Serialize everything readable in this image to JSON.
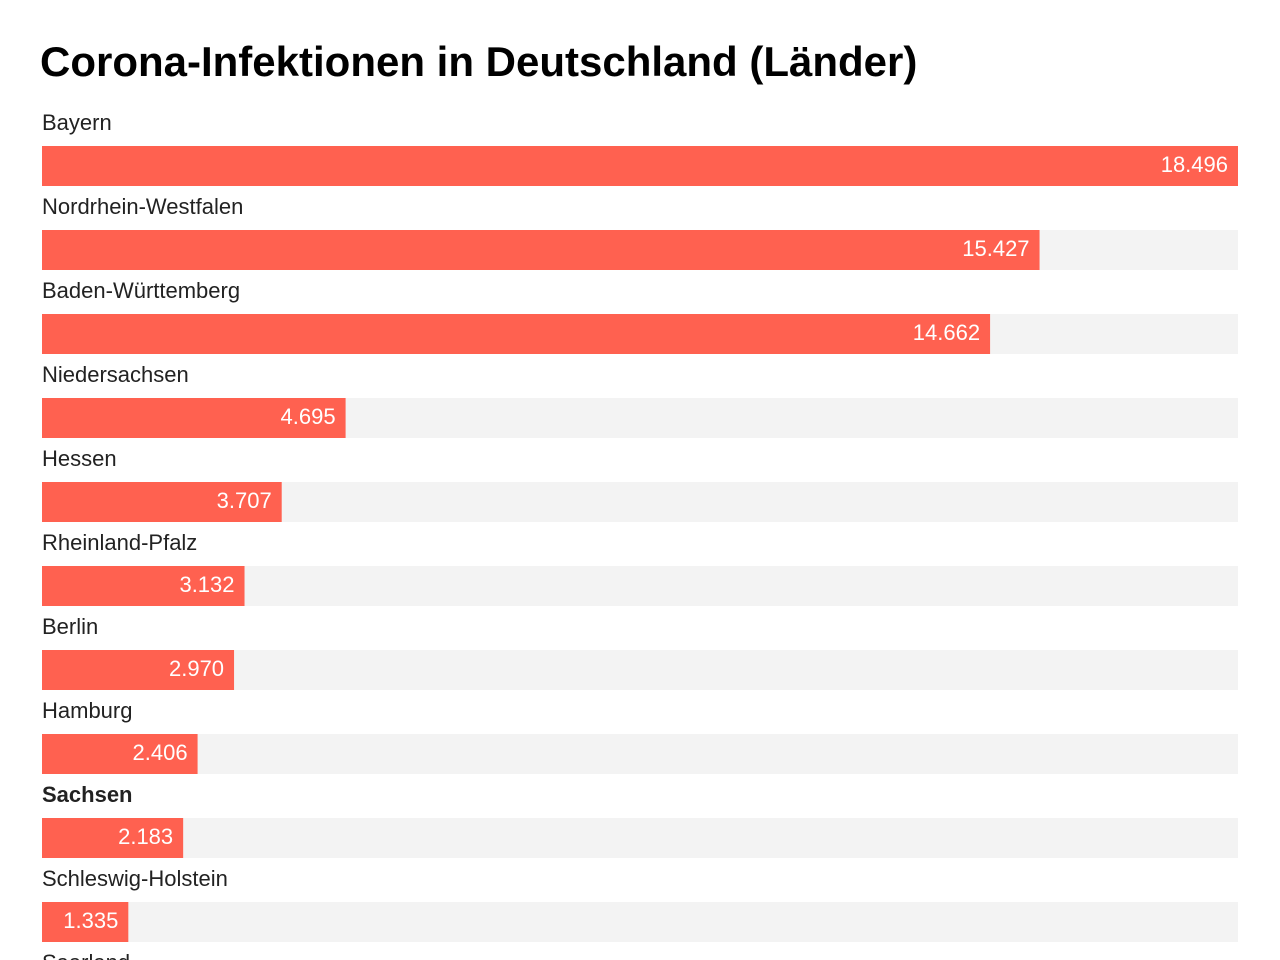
{
  "chart_data": {
    "type": "bar",
    "orientation": "horizontal",
    "title": "Corona-Infektionen in Deutschland (Länder)",
    "categories": [
      "Bayern",
      "Nordrhein-Westfalen",
      "Baden-Württemberg",
      "Niedersachsen",
      "Hessen",
      "Rheinland-Pfalz",
      "Berlin",
      "Hamburg",
      "Sachsen",
      "Schleswig-Holstein",
      "Saarland"
    ],
    "values": [
      18496,
      15427,
      14662,
      4695,
      3707,
      3132,
      2970,
      2406,
      2183,
      1335,
      null
    ],
    "value_labels": [
      "18.496",
      "15.427",
      "14.662",
      "4.695",
      "3.707",
      "3.132",
      "2.970",
      "2.406",
      "2.183",
      "1.335",
      null
    ],
    "color": "#ff6150",
    "track_color": "#f3f3f3",
    "xlim": [
      0,
      18496
    ],
    "highlight_index": 8
  }
}
